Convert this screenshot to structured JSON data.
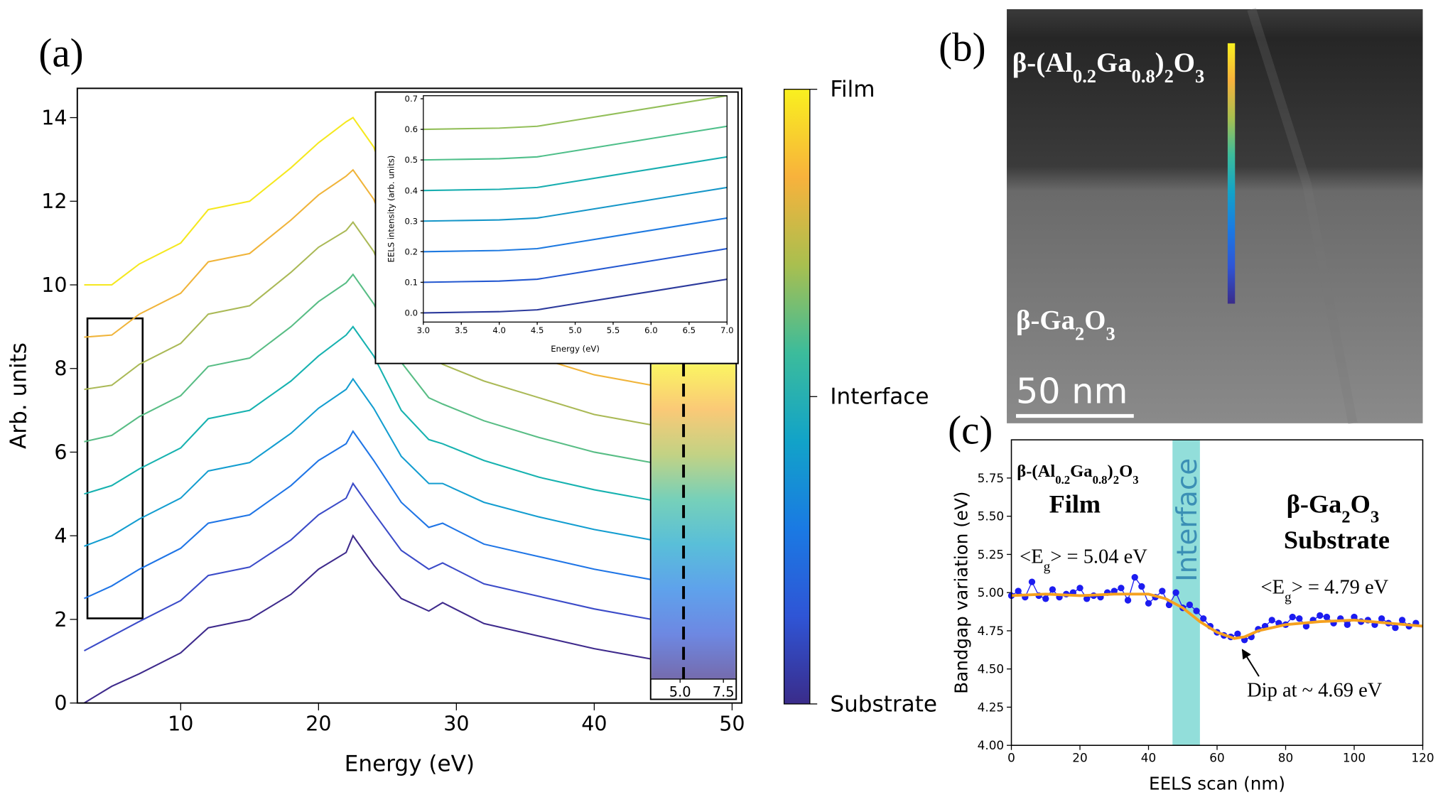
{
  "panel_labels": [
    "(a)",
    "(b)",
    "(c)"
  ],
  "chart_data": [
    {
      "type": "line",
      "xlabel": "Energy (eV)",
      "ylabel": "Arb. units",
      "xlim": [
        2.5,
        50.7
      ],
      "ylim": [
        0,
        14.7
      ],
      "xticks": [
        10,
        20,
        30,
        40,
        50
      ],
      "yticks": [
        0,
        2,
        4,
        6,
        8,
        10,
        12,
        14
      ],
      "x": [
        3,
        5,
        7,
        10,
        12,
        15,
        18,
        20,
        22,
        22.5,
        24,
        26,
        28,
        29,
        32,
        36,
        40,
        45,
        50
      ],
      "series": [
        {
          "color": "#3e2a8c",
          "values": [
            0,
            0.4,
            0.7,
            1.2,
            1.8,
            2.0,
            2.6,
            3.2,
            3.6,
            4.0,
            3.3,
            2.5,
            2.2,
            2.4,
            1.9,
            1.6,
            1.3,
            1.0,
            1.0
          ]
        },
        {
          "color": "#3b4bc8",
          "values": [
            1.25,
            1.6,
            1.95,
            2.45,
            3.05,
            3.25,
            3.9,
            4.5,
            4.9,
            5.25,
            4.55,
            3.65,
            3.2,
            3.35,
            2.85,
            2.55,
            2.25,
            1.95,
            1.9
          ]
        },
        {
          "color": "#1f75e6",
          "values": [
            2.5,
            2.8,
            3.2,
            3.7,
            4.3,
            4.5,
            5.2,
            5.8,
            6.2,
            6.5,
            5.8,
            4.8,
            4.2,
            4.3,
            3.8,
            3.5,
            3.2,
            2.9,
            2.8
          ]
        },
        {
          "color": "#139dd0",
          "values": [
            3.75,
            4,
            4.4,
            4.9,
            5.55,
            5.75,
            6.45,
            7.05,
            7.5,
            7.75,
            7.05,
            5.9,
            5.25,
            5.25,
            4.8,
            4.45,
            4.15,
            3.85,
            3.75
          ]
        },
        {
          "color": "#17b2b0",
          "values": [
            5,
            5.2,
            5.6,
            6.1,
            6.8,
            7,
            7.7,
            8.3,
            8.8,
            9,
            8.3,
            7,
            6.3,
            6.2,
            5.8,
            5.4,
            5.1,
            4.8,
            4.7
          ]
        },
        {
          "color": "#58bd85",
          "values": [
            6.25,
            6.4,
            6.85,
            7.35,
            8.05,
            8.25,
            9,
            9.6,
            10.05,
            10.25,
            9.55,
            8.15,
            7.3,
            7.15,
            6.75,
            6.35,
            6,
            5.7,
            5.6
          ]
        },
        {
          "color": "#aab956",
          "values": [
            7.5,
            7.6,
            8.1,
            8.6,
            9.3,
            9.5,
            10.3,
            10.9,
            11.3,
            11.5,
            10.8,
            9.3,
            8.3,
            8.1,
            7.7,
            7.3,
            6.9,
            6.6,
            6.5
          ]
        },
        {
          "color": "#f0b43a",
          "values": [
            8.75,
            8.8,
            9.3,
            9.8,
            10.55,
            10.75,
            11.55,
            12.15,
            12.6,
            12.75,
            12.05,
            10.4,
            9.3,
            9.05,
            8.65,
            8.25,
            7.85,
            7.55,
            7.4
          ]
        },
        {
          "color": "#f5e81f",
          "values": [
            10,
            10,
            10.5,
            11,
            11.8,
            12,
            12.8,
            13.4,
            13.9,
            14,
            13.3,
            11.5,
            10.3,
            10,
            9.6,
            9.2,
            8.8,
            8.5,
            8.3
          ]
        }
      ],
      "colorbar": {
        "labels": [
          "Film",
          "Interface",
          "Substrate"
        ],
        "colors": [
          "#f9f01f",
          "#f8b23c",
          "#a9bf4f",
          "#3cbc9b",
          "#12a3c8",
          "#1a7ae3",
          "#2f55d6",
          "#3a2c8a"
        ]
      }
    },
    {
      "type": "line",
      "xlabel": "Energy (eV)",
      "ylabel": "EELS intensity (arb. units)",
      "xlim": [
        3,
        7
      ],
      "ylim": [
        -0.03,
        0.71
      ],
      "xticks": [
        {
          "value": 3,
          "label": "3.0"
        },
        3.5,
        {
          "value": 4,
          "label": "4.0"
        },
        4.5,
        {
          "value": 5,
          "label": "5.0"
        },
        5.5,
        {
          "value": 6,
          "label": "6.0"
        },
        6.5,
        {
          "value": 7,
          "label": "7.0"
        }
      ],
      "yticks": [
        {
          "value": 0,
          "label": "0.0"
        },
        0.1,
        0.2,
        0.3,
        0.4,
        0.5,
        0.6,
        0.7
      ],
      "x": [
        3,
        3.5,
        4,
        4.5,
        5,
        5.5,
        6,
        6.5,
        7
      ],
      "series": [
        {
          "color": "#2c3a9c",
          "values": [
            0,
            0.002,
            0.004,
            0.01,
            0.03,
            0.05,
            0.07,
            0.09,
            0.11
          ]
        },
        {
          "color": "#2458d0",
          "values": [
            0.1,
            0.102,
            0.104,
            0.11,
            0.13,
            0.15,
            0.17,
            0.19,
            0.21
          ]
        },
        {
          "color": "#1f7ae0",
          "values": [
            0.2,
            0.202,
            0.204,
            0.21,
            0.23,
            0.25,
            0.27,
            0.29,
            0.31
          ]
        },
        {
          "color": "#1596c8",
          "values": [
            0.3,
            0.302,
            0.304,
            0.31,
            0.33,
            0.35,
            0.37,
            0.39,
            0.41
          ]
        },
        {
          "color": "#19aeb0",
          "values": [
            0.4,
            0.402,
            0.404,
            0.41,
            0.43,
            0.45,
            0.47,
            0.49,
            0.51
          ]
        },
        {
          "color": "#4fbf8a",
          "values": [
            0.5,
            0.502,
            0.504,
            0.51,
            0.53,
            0.55,
            0.57,
            0.59,
            0.61
          ]
        },
        {
          "color": "#93bf5a",
          "values": [
            0.6,
            0.602,
            0.604,
            0.61,
            0.63,
            0.65,
            0.67,
            0.69,
            0.71
          ]
        }
      ]
    },
    {
      "type": "line",
      "xlim": [
        3.3,
        8.24
      ],
      "xticks": [
        {
          "value": 5,
          "label": "5.0"
        },
        7.5
      ],
      "dashed_line": 5.2
    },
    {
      "type": "scatter",
      "xlabel": "EELS scan (nm)",
      "ylabel": "Bandgap variation (eV)",
      "xlim": [
        0,
        120
      ],
      "ylim": [
        4.0,
        6.0
      ],
      "xticks": [
        0,
        20,
        40,
        60,
        80,
        100,
        120
      ],
      "yticks": [
        {
          "value": 4,
          "label": "4.00"
        },
        4.25,
        {
          "value": 4.5,
          "label": "4.50"
        },
        4.75,
        {
          "value": 5,
          "label": "5.00"
        },
        5.25,
        {
          "value": 5.5,
          "label": "5.50"
        },
        5.75
      ],
      "interface_band": [
        47,
        55
      ],
      "band_color": "#7fd8d4",
      "series": [
        {
          "style": "line-markers",
          "color": "#1c1cf0",
          "x": [
            0,
            2,
            4,
            6,
            8,
            10,
            12,
            14,
            16,
            18,
            20,
            22,
            24,
            26,
            28,
            30,
            32,
            34,
            36,
            38,
            40,
            42,
            44,
            46,
            48,
            50,
            52,
            54,
            56,
            58,
            60,
            62,
            64,
            66,
            68,
            70,
            72,
            74,
            76,
            78,
            80,
            82,
            84,
            86,
            88,
            90,
            92,
            94,
            96,
            98,
            100,
            102,
            104,
            106,
            108,
            110,
            112,
            114,
            116,
            118
          ],
          "values": [
            4.98,
            5.01,
            4.97,
            5.07,
            4.98,
            4.96,
            5.02,
            4.97,
            4.99,
            5.0,
            5.03,
            4.96,
            4.98,
            4.97,
            5.0,
            5.01,
            5.03,
            4.95,
            5.1,
            5.04,
            4.93,
            4.97,
            5.01,
            4.92,
            5.0,
            4.9,
            4.92,
            4.88,
            4.83,
            4.78,
            4.74,
            4.72,
            4.71,
            4.73,
            4.69,
            4.71,
            4.76,
            4.78,
            4.82,
            4.8,
            4.79,
            4.84,
            4.83,
            4.78,
            4.82,
            4.85,
            4.84,
            4.8,
            4.83,
            4.79,
            4.84,
            4.81,
            4.82,
            4.79,
            4.83,
            4.8,
            4.77,
            4.82,
            4.78,
            4.8
          ]
        },
        {
          "style": "line",
          "color": "#f5a11f",
          "x": [
            0,
            10,
            20,
            30,
            40,
            45,
            50,
            55,
            60,
            65,
            68,
            72,
            80,
            90,
            100,
            110,
            120
          ],
          "values": [
            4.98,
            4.99,
            4.98,
            4.99,
            4.99,
            4.96,
            4.9,
            4.81,
            4.74,
            4.7,
            4.71,
            4.75,
            4.79,
            4.81,
            4.82,
            4.8,
            4.78
          ]
        }
      ],
      "annotations": [
        [
          "β-(Al",
          "0.2",
          "Ga",
          "0.8",
          ")",
          "2",
          "O",
          "3"
        ],
        "Film",
        [
          "<E",
          "g",
          "> = 5.04 eV"
        ],
        [
          "β-Ga",
          "2",
          "O",
          "3"
        ],
        "Substrate",
        [
          "<E",
          "g",
          "> = 4.79 eV"
        ],
        "Dip at ~ 4.69 eV",
        "Interface"
      ]
    }
  ],
  "micrograph": {
    "film_label": [
      "β-(Al",
      "0.2",
      "Ga",
      "0.8",
      ")",
      "2",
      "O",
      "3"
    ],
    "substrate_label": [
      "β-Ga",
      "2",
      "O",
      "3"
    ],
    "scale_bar": "50 nm"
  }
}
